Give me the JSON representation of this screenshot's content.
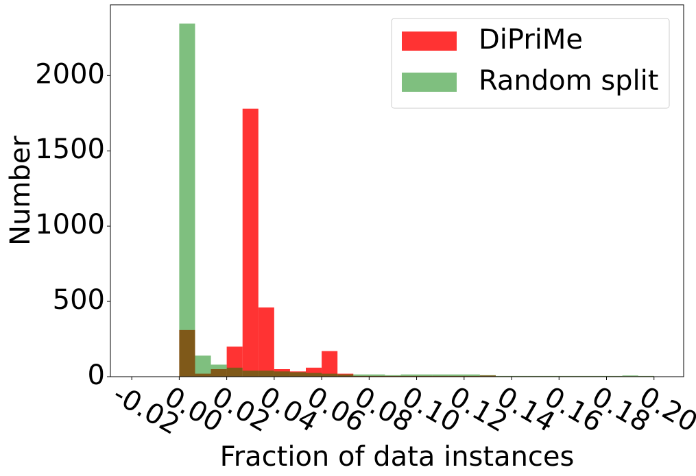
{
  "chart_data": {
    "type": "bar",
    "title": "",
    "xlabel": "Fraction of data instances",
    "ylabel": "Number",
    "xlim": [
      -0.029,
      0.2125
    ],
    "ylim": [
      0,
      2470
    ],
    "bin_width": 0.00667,
    "x_ticks": [
      -0.02,
      0.0,
      0.02,
      0.04,
      0.06,
      0.08,
      0.1,
      0.12,
      0.14,
      0.16,
      0.18,
      0.2
    ],
    "x_tick_labels": [
      "-0.02",
      "0.00",
      "0.02",
      "0.04",
      "0.06",
      "0.08",
      "0.10",
      "0.12",
      "0.14",
      "0.16",
      "0.18",
      "0.20"
    ],
    "y_ticks": [
      0,
      500,
      1000,
      1500,
      2000
    ],
    "y_tick_labels": [
      "0",
      "500",
      "1000",
      "1500",
      "2000"
    ],
    "grid": false,
    "legend": "top-right",
    "series": [
      {
        "name": "DiPriMe",
        "color": "#ff0000",
        "opacity": 0.8,
        "bin_start": [
          0.0,
          0.00667,
          0.01333,
          0.02,
          0.02667,
          0.03333,
          0.04,
          0.04667,
          0.05333,
          0.06,
          0.06667,
          0.07333,
          0.08,
          0.08667,
          0.09333,
          0.1,
          0.10667,
          0.11333,
          0.12,
          0.12667,
          0.13333,
          0.14,
          0.14667,
          0.15333,
          0.16,
          0.16667,
          0.17333,
          0.18,
          0.18667,
          0.19333
        ],
        "values": [
          310,
          20,
          50,
          200,
          1780,
          460,
          50,
          35,
          60,
          170,
          20,
          5,
          5,
          5,
          5,
          5,
          5,
          5,
          5,
          8,
          3,
          3,
          3,
          3,
          3,
          3,
          3,
          3,
          3,
          3
        ]
      },
      {
        "name": "Random split",
        "color": "#008000",
        "opacity": 0.5,
        "bin_start": [
          0.0,
          0.00667,
          0.01333,
          0.02,
          0.02667,
          0.03333,
          0.04,
          0.04667,
          0.05333,
          0.06,
          0.06667,
          0.07333,
          0.08,
          0.08667,
          0.09333,
          0.1,
          0.10667,
          0.11333,
          0.12,
          0.12667,
          0.13333,
          0.14,
          0.14667,
          0.15333,
          0.16,
          0.16667,
          0.17333,
          0.18,
          0.18667,
          0.19333
        ],
        "values": [
          2345,
          140,
          80,
          60,
          40,
          40,
          35,
          30,
          25,
          20,
          15,
          15,
          15,
          10,
          15,
          15,
          15,
          15,
          15,
          10,
          5,
          5,
          5,
          5,
          5,
          5,
          5,
          5,
          8,
          5
        ]
      }
    ]
  }
}
